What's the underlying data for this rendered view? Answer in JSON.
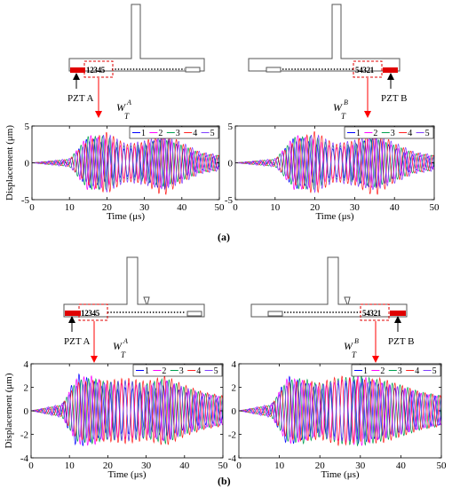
{
  "panel_labels": [
    "(a)",
    "(b)"
  ],
  "schematic": {
    "pzt_a": "PZT A",
    "pzt_b": "PZT B",
    "sensors_a": "12345",
    "sensors_b": "54321",
    "wave_a_main": "W",
    "wave_a_sup": "A",
    "wave_a_sub": "T",
    "wave_b_main": "W",
    "wave_b_sup": "B",
    "wave_b_sub": "T"
  },
  "colors": {
    "series": [
      "#0000ff",
      "#ff00ff",
      "#00a050",
      "#ff2020",
      "#8040ff"
    ],
    "pzt": "#ff0000",
    "arrow": "#ff0000"
  },
  "chart_data": [
    {
      "panel": "(a)",
      "side": "A",
      "type": "line",
      "xlabel": "Time (μs)",
      "ylabel": "Displacement (μm)",
      "xlim": [
        0,
        50
      ],
      "ylim": [
        -5,
        5
      ],
      "xticks": [
        0,
        10,
        20,
        30,
        40,
        50
      ],
      "yticks": [
        -5,
        0,
        5
      ],
      "legend": [
        "1",
        "2",
        "3",
        "4",
        "5"
      ],
      "legend_position": "top-right",
      "series": [
        {
          "name": "1",
          "x": [
            0,
            10,
            15,
            20,
            25,
            30,
            35,
            40,
            45,
            50
          ],
          "y": [
            0,
            0.3,
            3.5,
            2.5,
            1.8,
            2.2,
            3.8,
            2.0,
            1.0,
            0.8
          ]
        },
        {
          "name": "2",
          "x": [
            0,
            10,
            15,
            20,
            25,
            30,
            35,
            40,
            45,
            50
          ],
          "y": [
            0,
            0.4,
            3.8,
            3.2,
            2.0,
            2.4,
            3.5,
            2.2,
            1.2,
            0.9
          ]
        },
        {
          "name": "3",
          "x": [
            0,
            10,
            15,
            20,
            25,
            30,
            35,
            40,
            45,
            50
          ],
          "y": [
            0,
            0.5,
            3.6,
            3.6,
            2.2,
            2.6,
            3.2,
            2.4,
            1.3,
            1.0
          ]
        },
        {
          "name": "4",
          "x": [
            0,
            10,
            15,
            20,
            25,
            30,
            35,
            40,
            45,
            50
          ],
          "y": [
            0,
            0.5,
            3.0,
            4.2,
            2.5,
            2.8,
            4.6,
            2.6,
            1.4,
            1.0
          ]
        },
        {
          "name": "5",
          "x": [
            0,
            10,
            15,
            20,
            25,
            30,
            35,
            40,
            45,
            50
          ],
          "y": [
            0,
            0.6,
            2.8,
            4.0,
            2.6,
            3.0,
            3.6,
            2.8,
            1.5,
            1.1
          ]
        }
      ]
    },
    {
      "panel": "(a)",
      "side": "B",
      "type": "line",
      "xlabel": "Time (μs)",
      "ylabel": "",
      "xlim": [
        0,
        50
      ],
      "ylim": [
        -5,
        5
      ],
      "xticks": [
        0,
        10,
        20,
        30,
        40,
        50
      ],
      "yticks": [
        -5,
        0,
        5
      ],
      "legend": [
        "1",
        "2",
        "3",
        "4",
        "5"
      ],
      "legend_position": "top-right",
      "series": [
        {
          "name": "1",
          "x": [
            0,
            10,
            15,
            20,
            25,
            30,
            35,
            40,
            45,
            50
          ],
          "y": [
            0,
            0.3,
            3.6,
            2.6,
            1.8,
            2.4,
            3.6,
            2.0,
            1.0,
            0.8
          ]
        },
        {
          "name": "2",
          "x": [
            0,
            10,
            15,
            20,
            25,
            30,
            35,
            40,
            45,
            50
          ],
          "y": [
            0,
            0.4,
            3.8,
            3.2,
            2.0,
            2.5,
            3.5,
            2.2,
            1.2,
            0.9
          ]
        },
        {
          "name": "3",
          "x": [
            0,
            10,
            15,
            20,
            25,
            30,
            35,
            40,
            45,
            50
          ],
          "y": [
            0,
            0.5,
            3.5,
            3.6,
            2.2,
            2.7,
            3.3,
            2.4,
            1.3,
            1.0
          ]
        },
        {
          "name": "4",
          "x": [
            0,
            10,
            15,
            20,
            25,
            30,
            35,
            40,
            45,
            50
          ],
          "y": [
            0,
            0.5,
            3.0,
            4.3,
            2.5,
            3.0,
            4.6,
            2.6,
            1.4,
            1.0
          ]
        },
        {
          "name": "5",
          "x": [
            0,
            10,
            15,
            20,
            25,
            30,
            35,
            40,
            45,
            50
          ],
          "y": [
            0,
            0.6,
            2.8,
            4.0,
            2.6,
            3.1,
            3.7,
            2.8,
            1.5,
            1.1
          ]
        }
      ]
    },
    {
      "panel": "(b)",
      "side": "A",
      "type": "line",
      "xlabel": "Time (μs)",
      "ylabel": "Displacement (μm)",
      "xlim": [
        0,
        50
      ],
      "ylim": [
        -4,
        4
      ],
      "xticks": [
        0,
        10,
        20,
        30,
        40,
        50
      ],
      "yticks": [
        -4,
        -2,
        0,
        2,
        4
      ],
      "legend": [
        "1",
        "2",
        "3",
        "4",
        "5"
      ],
      "legend_position": "top-right",
      "series": [
        {
          "name": "1",
          "x": [
            0,
            8,
            12,
            16,
            20,
            25,
            30,
            35,
            40,
            45,
            50
          ],
          "y": [
            0,
            0.4,
            3.2,
            2.6,
            1.8,
            2.0,
            1.6,
            2.2,
            1.6,
            1.2,
            1.0
          ]
        },
        {
          "name": "2",
          "x": [
            0,
            8,
            12,
            16,
            20,
            25,
            30,
            35,
            40,
            45,
            50
          ],
          "y": [
            0,
            0.5,
            2.8,
            3.0,
            2.2,
            2.4,
            2.0,
            2.6,
            1.8,
            1.4,
            1.2
          ]
        },
        {
          "name": "3",
          "x": [
            0,
            8,
            12,
            16,
            20,
            25,
            30,
            35,
            40,
            45,
            50
          ],
          "y": [
            0,
            0.5,
            2.6,
            2.8,
            2.4,
            2.6,
            2.3,
            2.8,
            2.0,
            1.5,
            1.2
          ]
        },
        {
          "name": "4",
          "x": [
            0,
            8,
            12,
            16,
            20,
            25,
            30,
            35,
            40,
            45,
            50
          ],
          "y": [
            0,
            0.5,
            2.4,
            2.6,
            2.6,
            2.8,
            2.5,
            3.0,
            2.2,
            1.6,
            1.3
          ]
        },
        {
          "name": "5",
          "x": [
            0,
            8,
            12,
            16,
            20,
            25,
            30,
            35,
            40,
            45,
            50
          ],
          "y": [
            0,
            0.6,
            2.2,
            2.4,
            2.4,
            2.6,
            2.2,
            2.6,
            2.0,
            1.5,
            1.2
          ]
        }
      ]
    },
    {
      "panel": "(b)",
      "side": "B",
      "type": "line",
      "xlabel": "Time (μs)",
      "ylabel": "",
      "xlim": [
        0,
        50
      ],
      "ylim": [
        -4,
        4
      ],
      "xticks": [
        0,
        10,
        20,
        30,
        40,
        50
      ],
      "yticks": [
        -4,
        -2,
        0,
        2,
        4
      ],
      "legend": [
        "1",
        "2",
        "3",
        "4",
        "5"
      ],
      "legend_position": "top-right",
      "series": [
        {
          "name": "1",
          "x": [
            0,
            8,
            12,
            16,
            20,
            25,
            30,
            35,
            40,
            45,
            50
          ],
          "y": [
            0,
            0.4,
            3.0,
            2.4,
            1.8,
            2.4,
            2.8,
            2.2,
            1.8,
            1.4,
            1.2
          ]
        },
        {
          "name": "2",
          "x": [
            0,
            8,
            12,
            16,
            20,
            25,
            30,
            35,
            40,
            45,
            50
          ],
          "y": [
            0,
            0.5,
            2.8,
            2.6,
            2.0,
            2.6,
            3.0,
            2.4,
            2.0,
            1.5,
            1.2
          ]
        },
        {
          "name": "3",
          "x": [
            0,
            8,
            12,
            16,
            20,
            25,
            30,
            35,
            40,
            45,
            50
          ],
          "y": [
            0,
            0.5,
            2.6,
            2.8,
            2.2,
            2.8,
            3.0,
            2.6,
            2.2,
            1.6,
            1.3
          ]
        },
        {
          "name": "4",
          "x": [
            0,
            8,
            12,
            16,
            20,
            25,
            30,
            35,
            40,
            45,
            50
          ],
          "y": [
            0,
            0.5,
            2.4,
            2.6,
            2.4,
            3.0,
            2.6,
            2.8,
            2.2,
            1.6,
            1.3
          ]
        },
        {
          "name": "5",
          "x": [
            0,
            8,
            12,
            16,
            20,
            25,
            30,
            35,
            40,
            45,
            50
          ],
          "y": [
            0,
            0.6,
            2.2,
            2.4,
            2.2,
            2.6,
            2.4,
            2.4,
            2.0,
            1.5,
            1.2
          ]
        }
      ]
    }
  ]
}
